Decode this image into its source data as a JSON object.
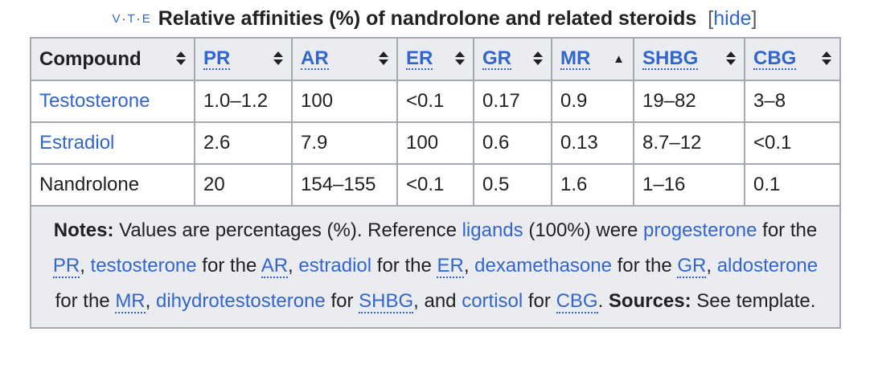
{
  "navbox": {
    "vte": {
      "v": "V",
      "t": "T",
      "e": "E"
    },
    "title": "Relative affinities (%) of nandrolone and related steroids",
    "hide": {
      "open": "[",
      "label": "hide",
      "close": "]"
    }
  },
  "table": {
    "headers": [
      {
        "label": "Compound",
        "link": false
      },
      {
        "label": "PR",
        "link": true
      },
      {
        "label": "AR",
        "link": true
      },
      {
        "label": "ER",
        "link": true
      },
      {
        "label": "GR",
        "link": true
      },
      {
        "label": "MR",
        "link": true,
        "sorted": "ascending"
      },
      {
        "label": "SHBG",
        "link": true
      },
      {
        "label": "CBG",
        "link": true
      }
    ],
    "rows": [
      {
        "compound": "Testosterone",
        "compound_link": true,
        "values": [
          "1.0–1.2",
          "100",
          "<0.1",
          "0.17",
          "0.9",
          "19–82",
          "3–8"
        ]
      },
      {
        "compound": "Estradiol",
        "compound_link": true,
        "values": [
          "2.6",
          "7.9",
          "100",
          "0.6",
          "0.13",
          "8.7–12",
          "<0.1"
        ]
      },
      {
        "compound": "Nandrolone",
        "compound_link": false,
        "values": [
          "20",
          "154–155",
          "<0.1",
          "0.5",
          "1.6",
          "1–16",
          "0.1"
        ]
      }
    ]
  },
  "notes": {
    "label": "Notes:",
    "t1": " Values are percentages (%). Reference ",
    "ligands": "ligands",
    "t2": " (100%) were ",
    "progesterone": "progesterone",
    "for_the": " for the ",
    "pr": "PR",
    "sep": ", ",
    "testosterone": "testosterone",
    "ar": "AR",
    "estradiol": "estradiol",
    "er": "ER",
    "dexamethasone": "dexamethasone",
    "gr": "GR",
    "aldosterone": "aldosterone",
    "mr": "MR",
    "dihydrotestosterone": "dihydrotestosterone",
    "for": " for ",
    "shbg": "SHBG",
    "and": ", and ",
    "cortisol": "cortisol",
    "cbg": "CBG",
    "period": ".",
    "sources_label": " Sources:",
    "sources_text": " See template."
  },
  "colors": {
    "link": "#3366cc",
    "header_bg": "#eaecf0",
    "border": "#a2a9b1",
    "text": "#202122"
  }
}
